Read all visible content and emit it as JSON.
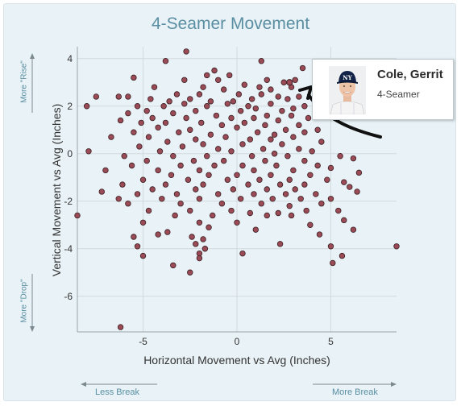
{
  "chart_data": {
    "type": "scatter",
    "title": "4-Seamer Movement",
    "xlabel": "Horizontal Movement vs Avg (Inches)",
    "ylabel": "Vertical Movement vs Avg (Inches)",
    "xlim": [
      -8.5,
      8.5
    ],
    "ylim": [
      -7.5,
      4.5
    ],
    "xticks": [
      -5,
      0,
      5
    ],
    "yticks": [
      -6,
      -4,
      -2,
      0,
      2,
      4
    ],
    "grid": true,
    "series": [
      {
        "color": "#9a4b55",
        "points": [
          [
            -2.7,
            4.3
          ],
          [
            -3.8,
            3.9
          ],
          [
            1.3,
            3.9
          ],
          [
            -1.2,
            3.5
          ],
          [
            3.5,
            3.6
          ],
          [
            -5.5,
            3.2
          ],
          [
            -1.6,
            3.3
          ],
          [
            -0.4,
            3.3
          ],
          [
            -1.0,
            3.1
          ],
          [
            -2.8,
            3.1
          ],
          [
            1.6,
            3.1
          ],
          [
            3.1,
            3.1
          ],
          [
            -4.4,
            2.8
          ],
          [
            -1.8,
            2.8
          ],
          [
            0.4,
            2.9
          ],
          [
            1.2,
            2.8
          ],
          [
            2.5,
            3.0
          ],
          [
            2.9,
            2.8
          ],
          [
            -0.7,
            2.7
          ],
          [
            1.8,
            2.7
          ],
          [
            -5.8,
            2.4
          ],
          [
            -3.2,
            2.5
          ],
          [
            -2.0,
            2.5
          ],
          [
            0.1,
            2.5
          ],
          [
            1.3,
            2.5
          ],
          [
            2.2,
            2.4
          ],
          [
            3.3,
            2.4
          ],
          [
            -7.5,
            2.4
          ],
          [
            -6.3,
            2.4
          ],
          [
            -4.6,
            2.3
          ],
          [
            -3.6,
            2.2
          ],
          [
            -2.5,
            2.3
          ],
          [
            -1.4,
            2.2
          ],
          [
            -0.2,
            2.2
          ],
          [
            0.8,
            2.3
          ],
          [
            2.7,
            2.3
          ],
          [
            -5.3,
            2.0
          ],
          [
            -3.9,
            2.0
          ],
          [
            -2.8,
            2.1
          ],
          [
            -1.6,
            2.0
          ],
          [
            -0.5,
            2.1
          ],
          [
            0.6,
            2.0
          ],
          [
            1.8,
            2.1
          ],
          [
            3.6,
            2.0
          ],
          [
            -8.0,
            2.0
          ],
          [
            -4.8,
            1.8
          ],
          [
            -2.2,
            1.8
          ],
          [
            0.2,
            1.8
          ],
          [
            1.0,
            1.9
          ],
          [
            2.4,
            1.8
          ],
          [
            3.0,
            1.9
          ],
          [
            -5.8,
            1.7
          ],
          [
            -3.4,
            1.7
          ],
          [
            -1.1,
            1.6
          ],
          [
            1.6,
            1.6
          ],
          [
            2.9,
            1.6
          ],
          [
            -4.5,
            1.5
          ],
          [
            -2.7,
            1.5
          ],
          [
            -0.3,
            1.5
          ],
          [
            0.9,
            1.5
          ],
          [
            2.2,
            1.4
          ],
          [
            3.8,
            1.5
          ],
          [
            -6.2,
            1.4
          ],
          [
            -5.1,
            1.3
          ],
          [
            -3.8,
            1.3
          ],
          [
            -1.9,
            1.3
          ],
          [
            -0.8,
            1.2
          ],
          [
            0.4,
            1.3
          ],
          [
            1.5,
            1.2
          ],
          [
            3.3,
            1.2
          ],
          [
            -4.2,
            1.1
          ],
          [
            -2.5,
            1.0
          ],
          [
            0.0,
            1.1
          ],
          [
            2.6,
            1.0
          ],
          [
            4.3,
            1.0
          ],
          [
            -5.5,
            0.9
          ],
          [
            -3.1,
            0.9
          ],
          [
            -1.4,
            0.8
          ],
          [
            1.1,
            0.9
          ],
          [
            2.0,
            0.8
          ],
          [
            3.6,
            0.9
          ],
          [
            -4.7,
            0.7
          ],
          [
            -2.2,
            0.6
          ],
          [
            -0.6,
            0.7
          ],
          [
            0.7,
            0.6
          ],
          [
            1.8,
            0.6
          ],
          [
            3.0,
            0.7
          ],
          [
            -6.7,
            0.7
          ],
          [
            -3.7,
            0.5
          ],
          [
            -1.8,
            0.4
          ],
          [
            0.3,
            0.4
          ],
          [
            2.4,
            0.4
          ],
          [
            4.5,
            0.5
          ],
          [
            -5.2,
            0.3
          ],
          [
            -2.9,
            0.3
          ],
          [
            -1.0,
            0.2
          ],
          [
            1.4,
            0.2
          ],
          [
            3.3,
            0.2
          ],
          [
            -4.1,
            0.1
          ],
          [
            -0.3,
            0.1
          ],
          [
            2.0,
            0.0
          ],
          [
            4.0,
            0.1
          ],
          [
            -7.9,
            0.1
          ],
          [
            -6.0,
            -0.1
          ],
          [
            -3.4,
            -0.1
          ],
          [
            -1.6,
            -0.1
          ],
          [
            0.8,
            -0.1
          ],
          [
            2.7,
            -0.1
          ],
          [
            5.5,
            -0.1
          ],
          [
            -4.8,
            -0.3
          ],
          [
            -2.3,
            -0.3
          ],
          [
            -0.7,
            -0.3
          ],
          [
            1.5,
            -0.3
          ],
          [
            3.6,
            -0.3
          ],
          [
            6.2,
            -0.2
          ],
          [
            -5.6,
            -0.5
          ],
          [
            -3.0,
            -0.5
          ],
          [
            -1.2,
            -0.5
          ],
          [
            0.3,
            -0.5
          ],
          [
            2.1,
            -0.5
          ],
          [
            4.3,
            -0.5
          ],
          [
            -4.2,
            -0.7
          ],
          [
            -2.0,
            -0.7
          ],
          [
            0.9,
            -0.7
          ],
          [
            3.0,
            -0.7
          ],
          [
            5.0,
            -0.6
          ],
          [
            -7.0,
            -0.7
          ],
          [
            -3.5,
            -0.9
          ],
          [
            -1.5,
            -0.9
          ],
          [
            0.0,
            -0.9
          ],
          [
            1.8,
            -0.9
          ],
          [
            3.9,
            -0.9
          ],
          [
            6.5,
            -0.8
          ],
          [
            -5.0,
            -1.1
          ],
          [
            -2.6,
            -1.1
          ],
          [
            -0.5,
            -1.1
          ],
          [
            1.2,
            -1.1
          ],
          [
            2.8,
            -1.1
          ],
          [
            4.8,
            -1.1
          ],
          [
            -6.1,
            -1.3
          ],
          [
            -3.8,
            -1.3
          ],
          [
            -1.8,
            -1.3
          ],
          [
            0.6,
            -1.3
          ],
          [
            2.3,
            -1.3
          ],
          [
            3.6,
            -1.3
          ],
          [
            5.7,
            -1.2
          ],
          [
            -4.5,
            -1.5
          ],
          [
            -2.2,
            -1.5
          ],
          [
            -0.2,
            -1.5
          ],
          [
            1.6,
            -1.5
          ],
          [
            3.1,
            -1.5
          ],
          [
            6.0,
            -1.4
          ],
          [
            -7.2,
            -1.6
          ],
          [
            -5.3,
            -1.7
          ],
          [
            -3.2,
            -1.7
          ],
          [
            -1.0,
            -1.7
          ],
          [
            0.9,
            -1.7
          ],
          [
            2.6,
            -1.7
          ],
          [
            4.2,
            -1.7
          ],
          [
            6.4,
            -1.6
          ],
          [
            -6.3,
            -1.9
          ],
          [
            -4.0,
            -1.9
          ],
          [
            -2.0,
            -1.9
          ],
          [
            0.2,
            -1.9
          ],
          [
            1.9,
            -1.9
          ],
          [
            3.4,
            -1.9
          ],
          [
            5.0,
            -1.9
          ],
          [
            -5.8,
            -2.1
          ],
          [
            -3.0,
            -2.1
          ],
          [
            -0.8,
            -2.1
          ],
          [
            1.3,
            -2.1
          ],
          [
            2.8,
            -2.2
          ],
          [
            4.5,
            -2.1
          ],
          [
            -4.7,
            -2.4
          ],
          [
            -2.5,
            -2.4
          ],
          [
            -0.3,
            -2.4
          ],
          [
            0.7,
            -2.5
          ],
          [
            2.2,
            -2.5
          ],
          [
            3.7,
            -2.4
          ],
          [
            5.4,
            -2.4
          ],
          [
            -8.5,
            -2.6
          ],
          [
            -3.3,
            -2.6
          ],
          [
            -1.3,
            -2.6
          ],
          [
            1.6,
            -2.6
          ],
          [
            2.9,
            -2.6
          ],
          [
            -5.0,
            -2.9
          ],
          [
            -2.0,
            -2.9
          ],
          [
            0.0,
            -2.9
          ],
          [
            3.9,
            -3.0
          ],
          [
            5.7,
            -2.8
          ],
          [
            -3.7,
            -3.3
          ],
          [
            -1.5,
            -3.1
          ],
          [
            1.0,
            -3.2
          ],
          [
            6.2,
            -3.2
          ],
          [
            -4.2,
            -3.4
          ],
          [
            -2.4,
            -3.5
          ],
          [
            -5.5,
            -3.5
          ],
          [
            -1.8,
            -3.6
          ],
          [
            4.4,
            -3.4
          ],
          [
            -5.3,
            -3.9
          ],
          [
            -2.2,
            -3.8
          ],
          [
            2.3,
            -3.8
          ],
          [
            5.0,
            -3.9
          ],
          [
            8.5,
            -3.9
          ],
          [
            -1.7,
            -4.0
          ],
          [
            -2.0,
            -4.2
          ],
          [
            -5.0,
            -4.3
          ],
          [
            0.3,
            -4.2
          ],
          [
            5.6,
            -4.3
          ],
          [
            -2.0,
            -4.4
          ],
          [
            -3.4,
            -4.7
          ],
          [
            5.1,
            -4.6
          ],
          [
            -2.5,
            -5.0
          ],
          [
            -6.2,
            -7.3
          ]
        ]
      }
    ],
    "annotations": {
      "top_left": "More \"Rise\"",
      "bottom_left": "More \"Drop\"",
      "bottom_right": "More Break",
      "bottom_left_h": "Less Break"
    }
  },
  "tooltip": {
    "name": "Cole, Gerrit",
    "pitch_type": "4-Seamer",
    "highlight_point": [
      2.8,
      3.0
    ],
    "logo": "yankees-cap-logo"
  }
}
